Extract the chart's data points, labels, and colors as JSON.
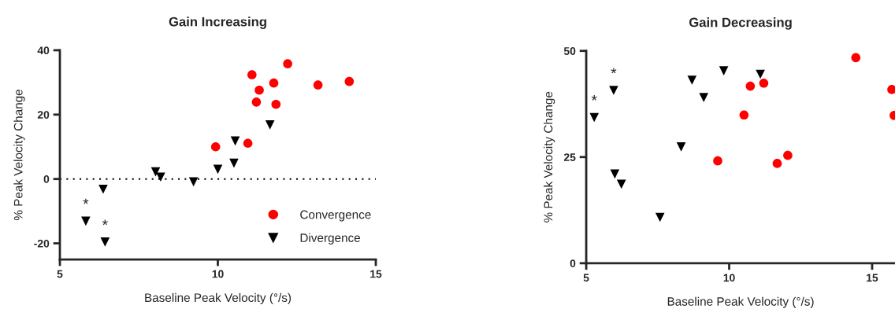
{
  "chart_data": [
    {
      "type": "scatter",
      "title": "Gain Increasing",
      "xlabel": "Baseline Peak Velocity (°/s)",
      "ylabel": "% Peak Velocity Change",
      "xlim": [
        5,
        15
      ],
      "xticks": [
        5,
        10,
        15
      ],
      "ylim": [
        -25,
        40
      ],
      "yticks": [
        {
          "value": -20,
          "label": "-20"
        },
        0,
        20,
        40
      ],
      "grid": false,
      "legend": "bottom right",
      "ref_lines": [
        {
          "axis": "y",
          "value": 0,
          "line_style": "dotted",
          "color": "#000000"
        }
      ],
      "annotations": [
        {
          "text": "*",
          "x": 5.82,
          "y": -13.1
        },
        {
          "text": "*",
          "x": 6.43,
          "y": -19.6
        }
      ],
      "series": [
        {
          "name": "Convergence",
          "color": "#ff0000",
          "marker": "circle",
          "x": [
            11.08,
            11.31,
            11.22,
            11.77,
            11.84,
            12.21,
            13.17,
            14.16,
            9.93,
            10.95
          ],
          "values": [
            32.4,
            27.6,
            23.9,
            29.8,
            23.2,
            35.8,
            29.2,
            30.3,
            10.0,
            11.1
          ]
        },
        {
          "name": "Divergence",
          "color": "#000000",
          "marker": "triangle",
          "x": [
            5.82,
            6.43,
            6.37,
            8.03,
            8.19,
            9.23,
            10.0,
            10.51,
            10.55,
            11.65
          ],
          "values": [
            -13.1,
            -19.6,
            -3.2,
            2.2,
            0.6,
            -0.9,
            3.0,
            4.9,
            11.8,
            16.8
          ]
        }
      ]
    },
    {
      "type": "scatter",
      "title": "Gain Decreasing",
      "xlabel": "Baseline Peak Velocity (°/s)",
      "ylabel": "% Peak Velocity Change",
      "xlim": [
        5,
        15.8
      ],
      "xticks": [
        5,
        10,
        15
      ],
      "ylim": [
        0,
        50
      ],
      "yticks": [
        0,
        25,
        50
      ],
      "grid": false,
      "annotations": [
        {
          "text": "*",
          "x": 5.28,
          "y": 34.3
        },
        {
          "text": "*",
          "x": 5.96,
          "y": 40.7
        }
      ],
      "series": [
        {
          "color": "#ff0000",
          "marker": "circle",
          "x": [
            9.6,
            10.52,
            10.74,
            11.21,
            11.68,
            12.05,
            14.43,
            15.69,
            15.77
          ],
          "values": [
            24.1,
            34.9,
            41.7,
            42.4,
            23.5,
            25.4,
            48.4,
            40.9,
            34.8
          ]
        },
        {
          "color": "#000000",
          "marker": "triangle",
          "x": [
            5.28,
            5.96,
            6.0,
            6.23,
            7.58,
            8.32,
            8.7,
            9.11,
            9.81,
            11.09
          ],
          "values": [
            34.3,
            40.7,
            21.0,
            18.6,
            10.8,
            27.4,
            43.1,
            39.0,
            45.3,
            44.5
          ]
        }
      ]
    }
  ]
}
